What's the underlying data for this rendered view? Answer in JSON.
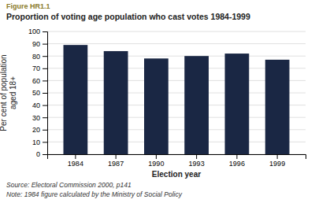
{
  "chart_data": {
    "type": "bar",
    "title": "Proportion of voting age population who cast votes 1984-1999",
    "annotations": [
      "Figure HR1.1",
      "Source: Electoral Commission 2000, p141",
      "Note: 1984 figure calculated by the Ministry of Social Policy"
    ],
    "x_label": "Election year",
    "y_label": "Per cent of population\naged 18+",
    "categories": [
      "1984",
      "1987",
      "1990",
      "1993",
      "1996",
      "1999"
    ],
    "values": [
      89,
      84,
      78,
      80,
      82,
      77
    ],
    "color": "#1a2744",
    "ylim": [
      0,
      100
    ],
    "yticks": [
      0,
      10,
      20,
      30,
      40,
      50,
      60,
      70,
      80,
      90,
      100
    ],
    "grid": true
  }
}
